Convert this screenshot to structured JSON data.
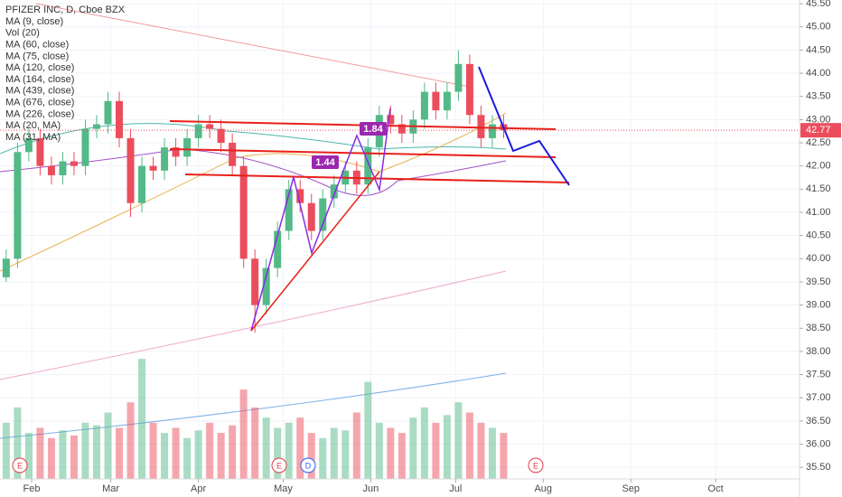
{
  "chart_data": {
    "type": "candlestick",
    "title": "PFIZER INC, D, Cboe BZX",
    "indicators": [
      "MA (9, close)",
      "Vol (20)",
      "MA (60, close)",
      "MA (75, close)",
      "MA (120, close)",
      "MA (164, close)",
      "MA (439, close)",
      "MA (676, close)",
      "MA (226, close)",
      "MA (20, MA)",
      "MA (31, MA)"
    ],
    "x": [
      23,
      27,
      31,
      35,
      39,
      43,
      47,
      51,
      55,
      59,
      63,
      67,
      71,
      75,
      79,
      83,
      87,
      91,
      95,
      99,
      103,
      107,
      111,
      115,
      119,
      123,
      127,
      131,
      135,
      139,
      143,
      147,
      151,
      155,
      159,
      163,
      167,
      171,
      175,
      179,
      183,
      187,
      191,
      195,
      199
    ],
    "open": [
      39.6,
      40.0,
      42.3,
      42.6,
      42.0,
      41.8,
      42.1,
      42.0,
      42.8,
      42.9,
      43.4,
      42.6,
      41.2,
      42.0,
      41.9,
      42.4,
      42.2,
      42.6,
      42.9,
      42.8,
      42.5,
      42.0,
      40.0,
      39.0,
      39.8,
      40.6,
      41.5,
      41.2,
      40.6,
      41.3,
      41.6,
      41.9,
      41.6,
      42.4,
      43.1,
      42.9,
      42.7,
      43.0,
      43.6,
      43.2,
      43.6,
      44.2,
      43.1,
      42.6,
      42.9
    ],
    "high": [
      40.2,
      42.5,
      42.8,
      42.8,
      42.2,
      42.3,
      42.3,
      43.0,
      43.1,
      43.6,
      43.6,
      42.8,
      42.2,
      42.2,
      42.6,
      42.6,
      42.8,
      43.1,
      43.1,
      43.0,
      42.7,
      42.2,
      40.2,
      40.0,
      40.8,
      41.7,
      41.7,
      41.4,
      41.5,
      41.8,
      42.1,
      42.1,
      42.6,
      43.3,
      43.3,
      43.1,
      43.2,
      43.8,
      43.8,
      43.8,
      44.5,
      44.4,
      43.3,
      43.1,
      43.1
    ],
    "low": [
      39.5,
      39.8,
      42.1,
      41.8,
      41.6,
      41.6,
      41.8,
      41.8,
      42.6,
      42.7,
      42.4,
      40.9,
      41.0,
      41.7,
      41.7,
      42.0,
      42.0,
      42.4,
      42.6,
      42.3,
      41.8,
      39.8,
      38.4,
      38.8,
      39.6,
      40.4,
      41.0,
      40.4,
      40.4,
      41.1,
      41.4,
      41.4,
      41.4,
      42.2,
      42.7,
      42.5,
      42.5,
      42.8,
      43.0,
      43.0,
      43.4,
      42.9,
      42.4,
      42.4,
      42.6
    ],
    "close": [
      40.0,
      42.3,
      42.6,
      42.0,
      41.8,
      42.1,
      42.0,
      42.8,
      42.9,
      43.4,
      42.6,
      41.2,
      42.0,
      41.9,
      42.4,
      42.2,
      42.6,
      42.9,
      42.8,
      42.5,
      42.0,
      40.0,
      39.0,
      39.8,
      40.6,
      41.5,
      41.2,
      40.6,
      41.3,
      41.6,
      41.9,
      41.6,
      42.4,
      43.1,
      42.9,
      42.7,
      43.0,
      43.6,
      43.2,
      43.6,
      44.2,
      43.1,
      42.6,
      42.9,
      42.77
    ],
    "volume": [
      22,
      28,
      18,
      20,
      16,
      19,
      17,
      22,
      21,
      26,
      20,
      30,
      47,
      22,
      18,
      20,
      16,
      19,
      22,
      18,
      21,
      35,
      28,
      24,
      20,
      22,
      24,
      18,
      16,
      20,
      19,
      26,
      38,
      22,
      20,
      18,
      24,
      28,
      22,
      25,
      30,
      26,
      22,
      20,
      18
    ],
    "volume_lim": [
      0,
      75
    ],
    "up_color": "#53b987",
    "down_color": "#eb4d5c",
    "xlim": [
      20.8,
      303.7
    ],
    "xticks": [
      {
        "value": 32,
        "label": "Feb"
      },
      {
        "value": 60,
        "label": "Mar"
      },
      {
        "value": 91,
        "label": "Apr"
      },
      {
        "value": 121,
        "label": "May"
      },
      {
        "value": 152,
        "label": "Jun"
      },
      {
        "value": 182,
        "label": "Jul"
      },
      {
        "value": 213,
        "label": "Aug"
      },
      {
        "value": 244,
        "label": "Sep"
      },
      {
        "value": 274,
        "label": "Oct"
      }
    ],
    "ylim": [
      35.25,
      45.58
    ],
    "yticks": [
      {
        "value": 35.5,
        "label": "35.50"
      },
      {
        "value": 36,
        "label": "36.00"
      },
      {
        "value": 36.5,
        "label": "36.50"
      },
      {
        "value": 37,
        "label": "37.00"
      },
      {
        "value": 37.5,
        "label": "37.50"
      },
      {
        "value": 38,
        "label": "38.00"
      },
      {
        "value": 38.5,
        "label": "38.50"
      },
      {
        "value": 39,
        "label": "39.00"
      },
      {
        "value": 39.5,
        "label": "39.50"
      },
      {
        "value": 40,
        "label": "40.00"
      },
      {
        "value": 40.5,
        "label": "40.50"
      },
      {
        "value": 41,
        "label": "41.00"
      },
      {
        "value": 41.5,
        "label": "41.50"
      },
      {
        "value": 42,
        "label": "42.00"
      },
      {
        "value": 42.5,
        "label": "42.50"
      },
      {
        "value": 43,
        "label": "43.00"
      },
      {
        "value": 43.5,
        "label": "43.50"
      },
      {
        "value": 44,
        "label": "44.00"
      },
      {
        "value": 44.5,
        "label": "44.50"
      },
      {
        "value": 45,
        "label": "45.00"
      },
      {
        "value": 45.5,
        "label": "45.50"
      }
    ],
    "grid": true,
    "last_price": 42.77,
    "annotations": [
      "1.84",
      "1.44"
    ],
    "events": [
      "E",
      "E",
      "D",
      "E"
    ]
  }
}
